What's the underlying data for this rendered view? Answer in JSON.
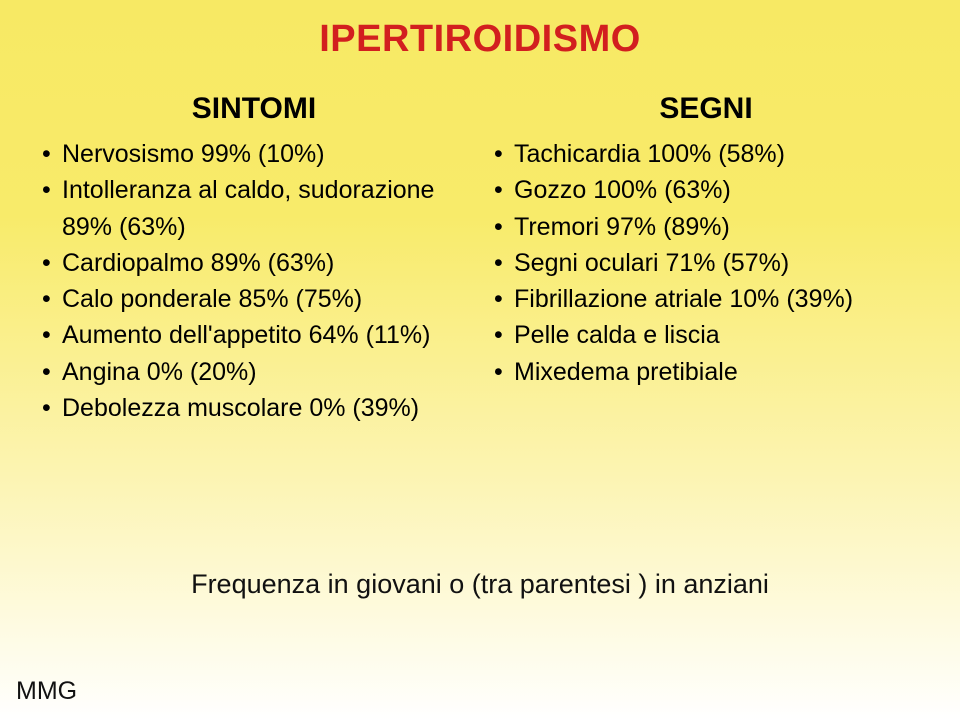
{
  "colors": {
    "title": "#d21f1f",
    "text": "#000000",
    "bg_top": "#f7e964",
    "bg_bottom": "#ffffff"
  },
  "title": "IPERTIROIDISMO",
  "left": {
    "heading": "SINTOMI",
    "items": [
      "Nervosismo 99% (10%)",
      "Intolleranza al caldo, sudorazione 89% (63%)",
      "Cardiopalmo 89% (63%)",
      "Calo ponderale 85% (75%)",
      "Aumento dell'appetito 64% (11%)",
      "Angina 0% (20%)",
      "Debolezza muscolare 0% (39%)"
    ]
  },
  "right": {
    "heading": "SEGNI",
    "items": [
      "Tachicardia 100% (58%)",
      "Gozzo  100% (63%)",
      "Tremori 97% (89%)",
      "Segni oculari 71% (57%)",
      "Fibrillazione atriale 10% (39%)",
      "Pelle calda e liscia",
      "Mixedema pretibiale"
    ]
  },
  "footnote": "Frequenza in giovani  o (tra parentesi ) in  anziani",
  "corner": "MMG",
  "typography": {
    "title_fontsize": 38,
    "heading_fontsize": 30,
    "item_fontsize": 25,
    "footnote_fontsize": 27,
    "corner_fontsize": 25,
    "font_family": "Arial"
  }
}
